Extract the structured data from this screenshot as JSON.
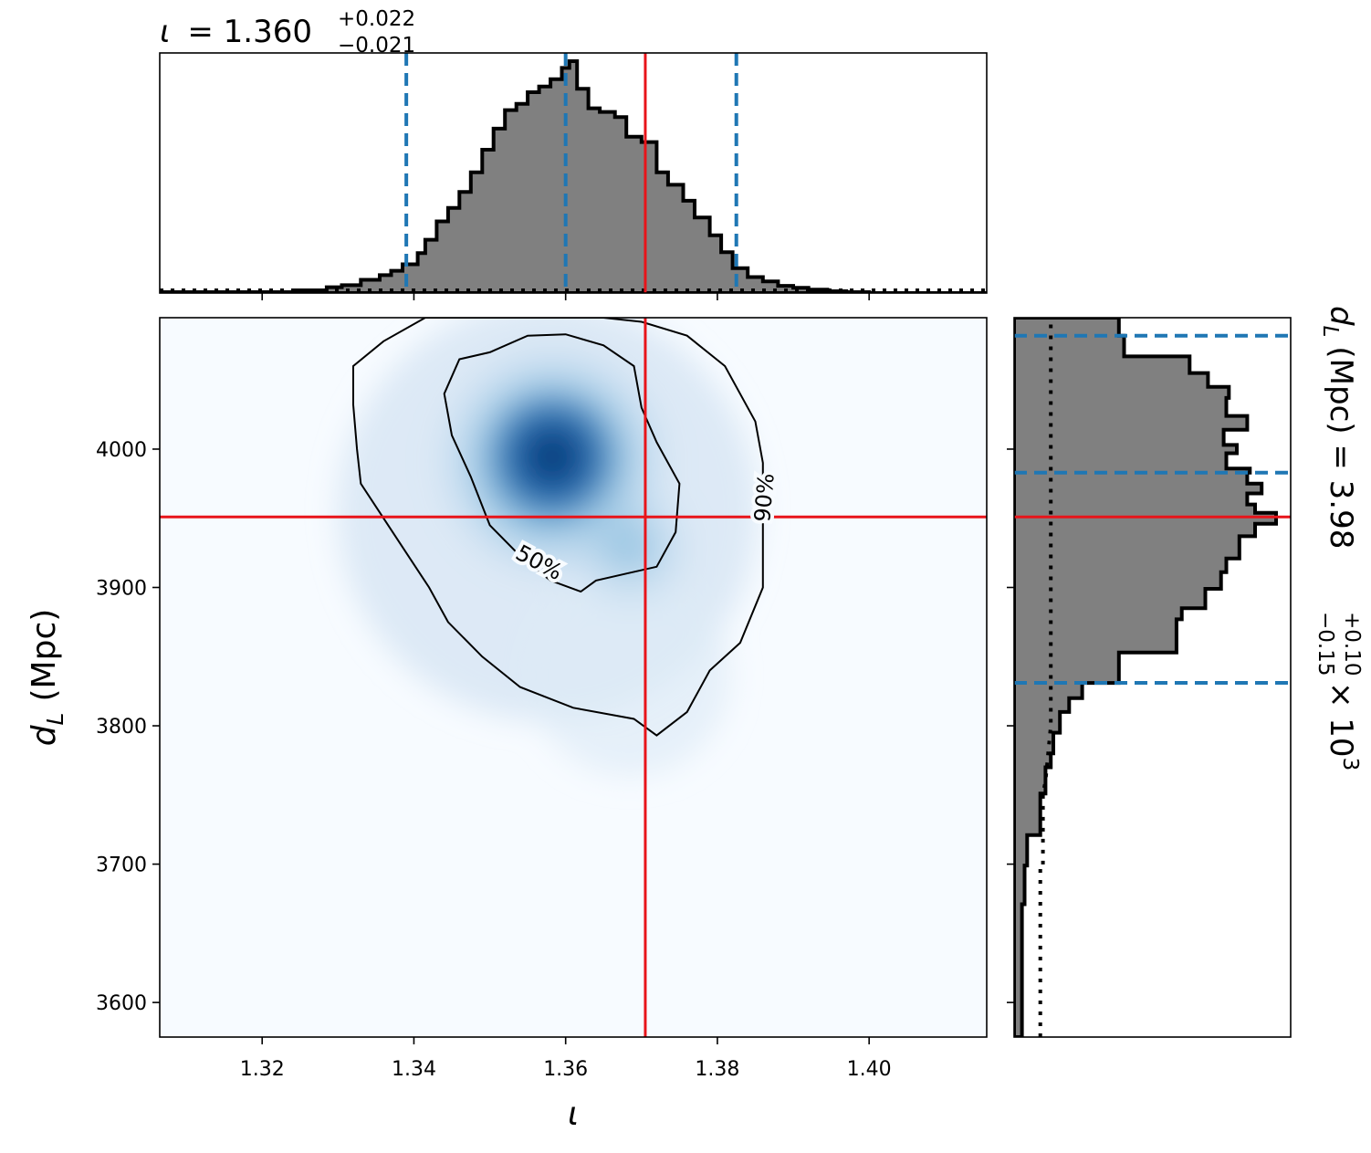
{
  "colors": {
    "truth": "#e8141a",
    "quantile": "#1f77b4",
    "hist_fill": "#808080",
    "density_low": "#f7fbff",
    "density_high": "#08306b"
  },
  "labels": {
    "top_title_symbol": "ι",
    "top_title_eq": "= 1.360",
    "top_title_plus": "+0.022",
    "top_title_minus": "−0.021",
    "right_title_symbol": "d",
    "right_title_sub": "L",
    "right_title_eq": "(Mpc) = 3.98",
    "right_title_plus": "+0.10",
    "right_title_minus": "−0.15",
    "right_title_mult": "× 10",
    "right_title_exp": "3",
    "xlabel": "ι",
    "ylabel_symbol": "d",
    "ylabel_sub": "L",
    "ylabel_rest": "(Mpc)",
    "contour_50": "50%",
    "contour_90": "90%"
  },
  "chart_data": [
    {
      "panel": "joint",
      "type": "heatmap",
      "xlim": [
        1.3065,
        1.4155
      ],
      "ylim": [
        3575,
        4095
      ],
      "xticks": [
        1.32,
        1.34,
        1.36,
        1.38,
        1.4
      ],
      "xtick_labels": [
        "1.32",
        "1.34",
        "1.36",
        "1.38",
        "1.40"
      ],
      "yticks": [
        3600,
        3700,
        3800,
        3900,
        4000
      ],
      "ytick_labels": [
        "3600",
        "3700",
        "3800",
        "3900",
        "4000"
      ],
      "truth": {
        "x": 1.3705,
        "y": 3951
      },
      "density_peak": {
        "x": 1.3595,
        "y": 4003
      },
      "contours": [
        {
          "label": "90%",
          "points": [
            [
              1.3415,
              4095
            ],
            [
              1.336,
              4078
            ],
            [
              1.332,
              4060
            ],
            [
              1.332,
              4032
            ],
            [
              1.3325,
              4000
            ],
            [
              1.333,
              3975
            ],
            [
              1.336,
              3950
            ],
            [
              1.339,
              3925
            ],
            [
              1.342,
              3900
            ],
            [
              1.3445,
              3875
            ],
            [
              1.349,
              3850
            ],
            [
              1.354,
              3828
            ],
            [
              1.361,
              3813
            ],
            [
              1.369,
              3805
            ],
            [
              1.372,
              3793
            ],
            [
              1.376,
              3810
            ],
            [
              1.379,
              3840
            ],
            [
              1.383,
              3860
            ],
            [
              1.386,
              3900
            ],
            [
              1.386,
              3960
            ],
            [
              1.386,
              3990
            ],
            [
              1.385,
              4020
            ],
            [
              1.381,
              4060
            ],
            [
              1.376,
              4082
            ],
            [
              1.37,
              4092
            ],
            [
              1.365,
              4095
            ]
          ]
        },
        {
          "label": "50%",
          "points": [
            [
              1.35,
              4070
            ],
            [
              1.355,
              4082
            ],
            [
              1.36,
              4083
            ],
            [
              1.365,
              4075
            ],
            [
              1.369,
              4060
            ],
            [
              1.37,
              4030
            ],
            [
              1.372,
              4005
            ],
            [
              1.375,
              3975
            ],
            [
              1.3745,
              3940
            ],
            [
              1.372,
              3915
            ],
            [
              1.368,
              3910
            ],
            [
              1.364,
              3905
            ],
            [
              1.362,
              3897
            ],
            [
              1.358,
              3905
            ],
            [
              1.3545,
              3920
            ],
            [
              1.35,
              3945
            ],
            [
              1.3475,
              3980
            ],
            [
              1.345,
              4010
            ],
            [
              1.344,
              4040
            ],
            [
              1.346,
              4065
            ]
          ]
        }
      ]
    },
    {
      "panel": "marginal_x",
      "type": "bar",
      "title": "ι = 1.360 +0.022 −0.021",
      "median": 1.36,
      "plus": 0.022,
      "minus": 0.021,
      "quantile_lines": [
        1.339,
        1.36,
        1.3825
      ],
      "truth": 1.3705,
      "bin_edges": [
        1.3065,
        1.3245,
        1.3285,
        1.3305,
        1.333,
        1.3355,
        1.337,
        1.3385,
        1.3405,
        1.3415,
        1.343,
        1.3445,
        1.346,
        1.3475,
        1.349,
        1.3505,
        1.352,
        1.3535,
        1.355,
        1.3565,
        1.358,
        1.3595,
        1.3605,
        1.3615,
        1.363,
        1.3645,
        1.3665,
        1.368,
        1.37,
        1.372,
        1.3735,
        1.3755,
        1.377,
        1.379,
        1.3805,
        1.382,
        1.384,
        1.386,
        1.388,
        1.39,
        1.392,
        1.3945,
        1.397,
        1.4,
        1.4155
      ],
      "values": [
        0.4,
        1.2,
        2.5,
        3.4,
        5.7,
        7.7,
        9.6,
        12.4,
        17.2,
        23.0,
        30.9,
        36.7,
        43.6,
        52.1,
        61.8,
        70.9,
        78.9,
        81.6,
        86.6,
        89.1,
        92.2,
        97.1,
        100.0,
        88.1,
        79.7,
        78.1,
        75.9,
        67.4,
        65.1,
        52.1,
        46.7,
        39.8,
        32.6,
        24.9,
        17.6,
        10.7,
        6.9,
        5.0,
        3.1,
        2.3,
        1.5,
        0.8,
        0.4,
        0.0
      ],
      "reference_level": 1.2
    },
    {
      "panel": "marginal_y",
      "type": "bar",
      "orientation": "horizontal",
      "title": "d_L (Mpc) = 3.98 +0.10 −0.15 × 10^3",
      "quantile_lines": [
        4082,
        3983,
        3831
      ],
      "truth": 3951,
      "bin_edges": [
        3575,
        3671,
        3699,
        3721,
        3751,
        3770,
        3780,
        3795,
        3810,
        3820,
        3831,
        3853,
        3877,
        3885,
        3899,
        3911,
        3921,
        3937,
        3946,
        3954,
        3960,
        3968,
        3975,
        3983,
        3986,
        3997,
        4003,
        4014,
        4024,
        4037,
        4045,
        4055,
        4067,
        4082,
        4095
      ],
      "values": [
        3.0,
        4.0,
        5.0,
        10.0,
        12.0,
        14.0,
        15.0,
        17.5,
        21.0,
        26.0,
        40.0,
        62.0,
        64.0,
        73.0,
        79.0,
        81.0,
        86.0,
        92.0,
        100.0,
        92.0,
        89.0,
        94.5,
        89.0,
        90.0,
        81.0,
        85.0,
        80.0,
        89.0,
        81.0,
        82.0,
        74.0,
        67.0,
        42.0,
        40.0
      ],
      "reference": [
        [
          3575,
          10
        ],
        [
          3699,
          10
        ],
        [
          3699,
          11
        ],
        [
          3751,
          11
        ],
        [
          3760,
          12
        ],
        [
          3780,
          13
        ],
        [
          3800,
          14
        ],
        [
          4095,
          14
        ]
      ]
    }
  ]
}
